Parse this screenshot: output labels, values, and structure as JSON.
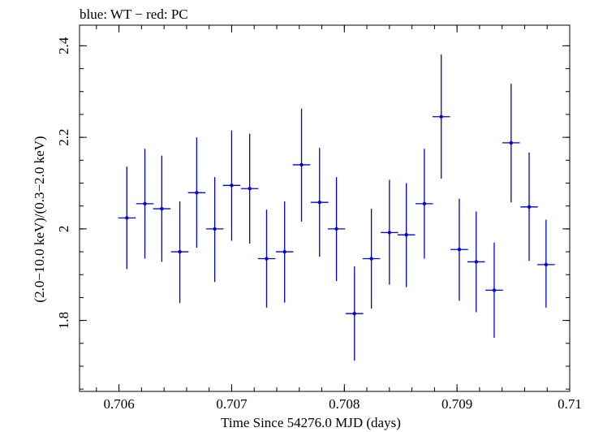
{
  "chart_data": {
    "type": "scatter",
    "title": "blue: WT − red: PC",
    "xlabel": "Time Since 54276.0 MJD (days)",
    "ylabel": "(2.0−10.0 keV)/(0.3−2.0 keV)",
    "xlim": [
      0.70565,
      0.71
    ],
    "ylim": [
      1.645,
      2.445
    ],
    "x_ticks": [
      {
        "value": 0.706,
        "label": "0.706"
      },
      {
        "value": 0.707,
        "label": "0.707"
      },
      {
        "value": 0.708,
        "label": "0.708"
      },
      {
        "value": 0.709,
        "label": "0.709"
      },
      {
        "value": 0.71,
        "label": "0.71"
      }
    ],
    "y_ticks": [
      {
        "value": 1.8,
        "label": "1.8"
      },
      {
        "value": 2.0,
        "label": "2"
      },
      {
        "value": 2.2,
        "label": "2.2"
      },
      {
        "value": 2.4,
        "label": "2.4"
      }
    ],
    "x_minor_step": 0.0002,
    "y_minor_step": 0.05,
    "grid": false,
    "series": [
      {
        "color": "#0000dd",
        "x_halfwidth": 7.75e-05,
        "points": [
          {
            "x": 0.70607,
            "y": 2.024,
            "ylo": 1.912,
            "yhi": 2.136
          },
          {
            "x": 0.70623,
            "y": 2.055,
            "ylo": 1.935,
            "yhi": 2.175
          },
          {
            "x": 0.70638,
            "y": 2.044,
            "ylo": 1.928,
            "yhi": 2.16
          },
          {
            "x": 0.70654,
            "y": 1.95,
            "ylo": 1.838,
            "yhi": 2.06
          },
          {
            "x": 0.70669,
            "y": 2.079,
            "ylo": 1.959,
            "yhi": 2.2
          },
          {
            "x": 0.70685,
            "y": 2.0,
            "ylo": 1.884,
            "yhi": 2.113
          },
          {
            "x": 0.707,
            "y": 2.095,
            "ylo": 1.974,
            "yhi": 2.215
          },
          {
            "x": 0.70716,
            "y": 2.088,
            "ylo": 1.968,
            "yhi": 2.208
          },
          {
            "x": 0.70731,
            "y": 1.935,
            "ylo": 1.828,
            "yhi": 2.042
          },
          {
            "x": 0.70747,
            "y": 1.95,
            "ylo": 1.839,
            "yhi": 2.06
          },
          {
            "x": 0.70762,
            "y": 2.14,
            "ylo": 2.016,
            "yhi": 2.263
          },
          {
            "x": 0.70778,
            "y": 2.058,
            "ylo": 1.939,
            "yhi": 2.177
          },
          {
            "x": 0.70793,
            "y": 2.0,
            "ylo": 1.886,
            "yhi": 2.113
          },
          {
            "x": 0.70809,
            "y": 1.815,
            "ylo": 1.712,
            "yhi": 1.918
          },
          {
            "x": 0.70824,
            "y": 1.935,
            "ylo": 1.826,
            "yhi": 2.044
          },
          {
            "x": 0.7084,
            "y": 1.992,
            "ylo": 1.878,
            "yhi": 2.107
          },
          {
            "x": 0.70855,
            "y": 1.987,
            "ylo": 1.873,
            "yhi": 2.1
          },
          {
            "x": 0.70871,
            "y": 2.055,
            "ylo": 1.935,
            "yhi": 2.175
          },
          {
            "x": 0.70886,
            "y": 2.245,
            "ylo": 2.11,
            "yhi": 2.381
          },
          {
            "x": 0.70902,
            "y": 1.955,
            "ylo": 1.843,
            "yhi": 2.066
          },
          {
            "x": 0.70917,
            "y": 1.928,
            "ylo": 1.818,
            "yhi": 2.038
          },
          {
            "x": 0.70933,
            "y": 1.866,
            "ylo": 1.762,
            "yhi": 1.97
          },
          {
            "x": 0.70948,
            "y": 2.188,
            "ylo": 2.058,
            "yhi": 2.317
          },
          {
            "x": 0.70964,
            "y": 2.048,
            "ylo": 1.93,
            "yhi": 2.167
          },
          {
            "x": 0.70979,
            "y": 1.922,
            "ylo": 1.828,
            "yhi": 2.02
          }
        ]
      }
    ]
  }
}
